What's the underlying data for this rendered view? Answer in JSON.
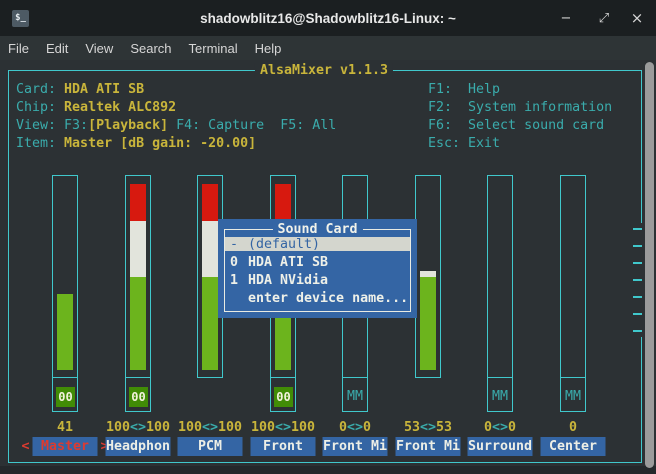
{
  "window": {
    "title": "shadowblitz16@Shadowblitz16-Linux: ~",
    "icon_label": "$_",
    "minimize": "−",
    "maximize": "⤢",
    "close": "×"
  },
  "menubar": {
    "items": [
      "File",
      "Edit",
      "View",
      "Search",
      "Terminal",
      "Help"
    ]
  },
  "mixer": {
    "frame_title": "AlsaMixer v1.1.3",
    "info_rows": [
      [
        {
          "t": "Card: ",
          "c": "teal"
        },
        {
          "t": "HDA ATI SB",
          "c": "yellow"
        }
      ],
      [
        {
          "t": "Chip: ",
          "c": "teal"
        },
        {
          "t": "Realtek ALC892",
          "c": "yellow"
        }
      ],
      [
        {
          "t": "View: F3:",
          "c": "teal"
        },
        {
          "t": "[Playback]",
          "c": "yellow"
        },
        {
          "t": " F4: Capture  F5: All",
          "c": "teal"
        }
      ],
      [
        {
          "t": "Item: ",
          "c": "teal"
        },
        {
          "t": "Master [dB gain: -20.00]",
          "c": "yellow"
        }
      ]
    ],
    "help_rows": [
      {
        "key": "F1:",
        "text": "F1:  Help"
      },
      {
        "key": "F2:",
        "text": "F2:  System information"
      },
      {
        "key": "F6:",
        "text": "F6:  Select sound card"
      },
      {
        "key": "Esc:",
        "text": "Esc: Exit"
      }
    ],
    "channels": [
      {
        "label": "Master",
        "value": "41",
        "volume": 41,
        "switch": "00",
        "selected": true
      },
      {
        "label": "Headphon",
        "value": "100<>100",
        "volume": 100,
        "switch": "00",
        "selected": false
      },
      {
        "label": "PCM",
        "value": "100<>100",
        "volume": 100,
        "switch": null,
        "selected": false
      },
      {
        "label": "Front",
        "value": "100<>100",
        "volume": 100,
        "switch": "00",
        "selected": false
      },
      {
        "label": "Front Mi",
        "value": "0<>0",
        "volume": 0,
        "switch": "MM",
        "selected": false
      },
      {
        "label": "Front Mi",
        "value": "53<>53",
        "volume": 53,
        "switch": null,
        "selected": false
      },
      {
        "label": "Surround",
        "value": "0<>0",
        "volume": 0,
        "switch": "MM",
        "selected": false
      },
      {
        "label": "Center",
        "value": "0",
        "volume": 0,
        "switch": "MM",
        "selected": false
      }
    ],
    "dialog": {
      "title": "Sound Card",
      "items": [
        {
          "key": "-",
          "label": "(default)",
          "selected": true
        },
        {
          "key": "0",
          "label": "HDA ATI SB",
          "selected": false
        },
        {
          "key": "1",
          "label": "HDA NVidia",
          "selected": false
        },
        {
          "key": "",
          "label": "enter device name...",
          "selected": false
        }
      ]
    }
  },
  "colors": {
    "term-bg": "#2c3134",
    "titlebar-bg": "#1b1f21",
    "menubar-bg": "#2e3436",
    "strip-bg": "#24282b",
    "teal": "#3aacac",
    "teal-br": "#40c8cc",
    "yellow": "#c9b53b",
    "bar-red": "#d7190f",
    "bar-white": "#e2e4dc",
    "bar-green": "#6cb41d",
    "sw-green": "#418c06",
    "sw-text": "#f2f2dc",
    "blue": "#3465a4",
    "sel-bg": "#d4d6ce",
    "sel-red": "#dd3b30",
    "scroll": "#9b9b9b",
    "menu-text": "#d6d6d6",
    "title-text": "#e8e8e8"
  }
}
